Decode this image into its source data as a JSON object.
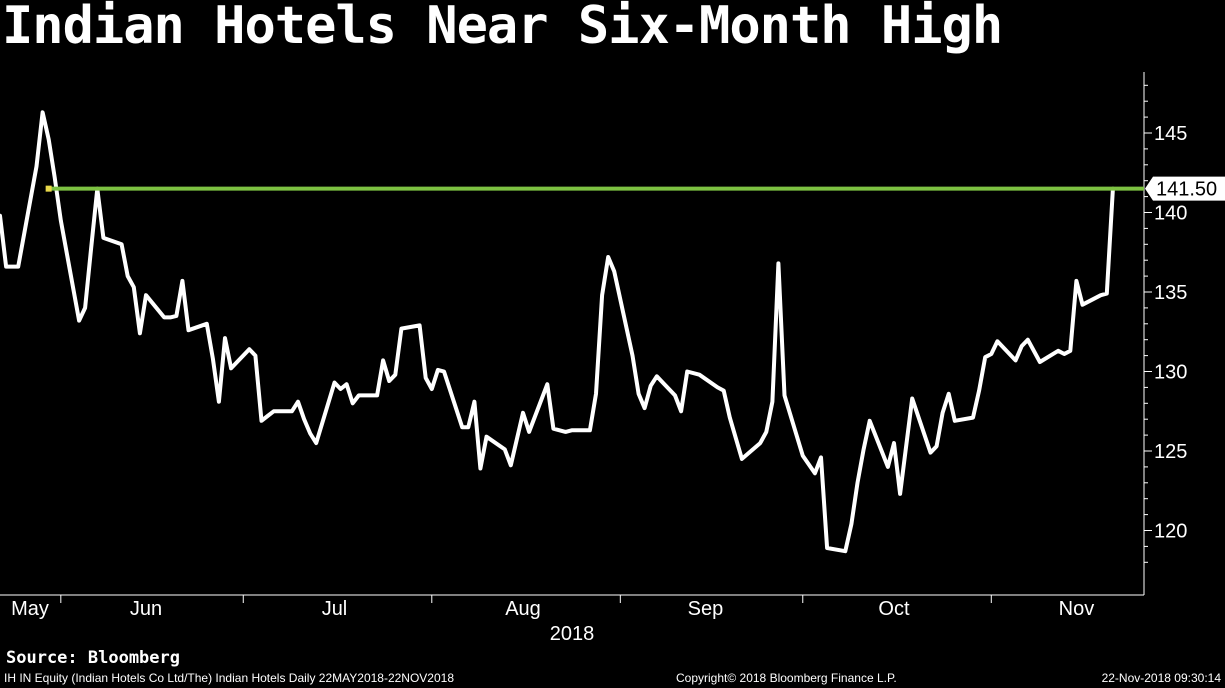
{
  "title": "Indian Hotels Near Six-Month High",
  "source": "Source: Bloomberg",
  "footer": {
    "left": "IH IN Equity (Indian Hotels Co Ltd/The) Indian Hotels  Daily 22MAY2018-22NOV2018",
    "center": "Copyright© 2018 Bloomberg Finance L.P.",
    "right": "22-Nov-2018 09:30:14"
  },
  "colors": {
    "background": "#000000",
    "line": "#ffffff",
    "level_line": "#7dc242",
    "text": "#ffffff"
  },
  "chart_data": {
    "type": "line",
    "title": "Indian Hotels Near Six-Month High",
    "x_label": "2018",
    "x_range": [
      "2018-05-22",
      "2018-11-22"
    ],
    "y_range": [
      117,
      149
    ],
    "y_axis_position": "right",
    "y_ticks": [
      120,
      125,
      130,
      135,
      140,
      145
    ],
    "month_labels": [
      {
        "label": "May",
        "date": "2018-05-15"
      },
      {
        "label": "Jun",
        "date": "2018-06-15"
      },
      {
        "label": "Jul",
        "date": "2018-07-16"
      },
      {
        "label": "Aug",
        "date": "2018-08-16"
      },
      {
        "label": "Sep",
        "date": "2018-09-15"
      },
      {
        "label": "Oct",
        "date": "2018-10-16"
      },
      {
        "label": "Nov",
        "date": "2018-11-15"
      }
    ],
    "month_dividers": [
      "2018-06-01",
      "2018-07-01",
      "2018-08-01",
      "2018-09-01",
      "2018-10-01",
      "2018-11-01"
    ],
    "reference_level": {
      "value": 141.5,
      "label": "141.50",
      "start_date": "2018-05-30"
    },
    "series": [
      {
        "values": [
          [
            "2018-05-22",
            139.8
          ],
          [
            "2018-05-23",
            136.6
          ],
          [
            "2018-05-24",
            136.6
          ],
          [
            "2018-05-25",
            136.6
          ],
          [
            "2018-05-28",
            142.9
          ],
          [
            "2018-05-29",
            146.3
          ],
          [
            "2018-05-30",
            144.6
          ],
          [
            "2018-05-31",
            142.2
          ],
          [
            "2018-06-01",
            139.5
          ],
          [
            "2018-06-04",
            133.2
          ],
          [
            "2018-06-05",
            134.0
          ],
          [
            "2018-06-06",
            137.8
          ],
          [
            "2018-06-07",
            141.5
          ],
          [
            "2018-06-08",
            138.4
          ],
          [
            "2018-06-11",
            138.0
          ],
          [
            "2018-06-12",
            136.0
          ],
          [
            "2018-06-13",
            135.3
          ],
          [
            "2018-06-14",
            132.4
          ],
          [
            "2018-06-15",
            134.8
          ],
          [
            "2018-06-18",
            133.4
          ],
          [
            "2018-06-19",
            133.4
          ],
          [
            "2018-06-20",
            133.5
          ],
          [
            "2018-06-21",
            135.7
          ],
          [
            "2018-06-22",
            132.6
          ],
          [
            "2018-06-25",
            133.0
          ],
          [
            "2018-06-26",
            130.8
          ],
          [
            "2018-06-27",
            128.1
          ],
          [
            "2018-06-28",
            132.1
          ],
          [
            "2018-06-29",
            130.2
          ],
          [
            "2018-07-02",
            131.4
          ],
          [
            "2018-07-03",
            131.0
          ],
          [
            "2018-07-04",
            126.9
          ],
          [
            "2018-07-05",
            127.2
          ],
          [
            "2018-07-06",
            127.5
          ],
          [
            "2018-07-09",
            127.5
          ],
          [
            "2018-07-10",
            128.1
          ],
          [
            "2018-07-11",
            127.0
          ],
          [
            "2018-07-12",
            126.1
          ],
          [
            "2018-07-13",
            125.5
          ],
          [
            "2018-07-16",
            129.3
          ],
          [
            "2018-07-17",
            128.9
          ],
          [
            "2018-07-18",
            129.2
          ],
          [
            "2018-07-19",
            128.0
          ],
          [
            "2018-07-20",
            128.5
          ],
          [
            "2018-07-23",
            128.5
          ],
          [
            "2018-07-24",
            130.7
          ],
          [
            "2018-07-25",
            129.4
          ],
          [
            "2018-07-26",
            129.8
          ],
          [
            "2018-07-27",
            132.7
          ],
          [
            "2018-07-30",
            132.9
          ],
          [
            "2018-07-31",
            129.6
          ],
          [
            "2018-08-01",
            128.9
          ],
          [
            "2018-08-02",
            130.1
          ],
          [
            "2018-08-03",
            130.0
          ],
          [
            "2018-08-06",
            126.5
          ],
          [
            "2018-08-07",
            126.5
          ],
          [
            "2018-08-08",
            128.1
          ],
          [
            "2018-08-09",
            123.9
          ],
          [
            "2018-08-10",
            125.9
          ],
          [
            "2018-08-13",
            125.1
          ],
          [
            "2018-08-14",
            124.1
          ],
          [
            "2018-08-16",
            127.4
          ],
          [
            "2018-08-17",
            126.2
          ],
          [
            "2018-08-20",
            129.2
          ],
          [
            "2018-08-21",
            126.4
          ],
          [
            "2018-08-23",
            126.2
          ],
          [
            "2018-08-24",
            126.3
          ],
          [
            "2018-08-27",
            126.3
          ],
          [
            "2018-08-28",
            128.6
          ],
          [
            "2018-08-29",
            134.8
          ],
          [
            "2018-08-30",
            137.2
          ],
          [
            "2018-08-31",
            136.3
          ],
          [
            "2018-09-03",
            131.0
          ],
          [
            "2018-09-04",
            128.6
          ],
          [
            "2018-09-05",
            127.7
          ],
          [
            "2018-09-06",
            129.1
          ],
          [
            "2018-09-07",
            129.7
          ],
          [
            "2018-09-10",
            128.5
          ],
          [
            "2018-09-11",
            127.5
          ],
          [
            "2018-09-12",
            130.0
          ],
          [
            "2018-09-14",
            129.8
          ],
          [
            "2018-09-17",
            129.0
          ],
          [
            "2018-09-18",
            128.8
          ],
          [
            "2018-09-19",
            127.1
          ],
          [
            "2018-09-21",
            124.5
          ],
          [
            "2018-09-24",
            125.5
          ],
          [
            "2018-09-25",
            126.2
          ],
          [
            "2018-09-26",
            128.1
          ],
          [
            "2018-09-27",
            136.8
          ],
          [
            "2018-09-28",
            128.5
          ],
          [
            "2018-10-01",
            124.7
          ],
          [
            "2018-10-03",
            123.6
          ],
          [
            "2018-10-04",
            124.6
          ],
          [
            "2018-10-05",
            118.9
          ],
          [
            "2018-10-08",
            118.7
          ],
          [
            "2018-10-09",
            120.4
          ],
          [
            "2018-10-10",
            123.0
          ],
          [
            "2018-10-11",
            125.1
          ],
          [
            "2018-10-12",
            126.9
          ],
          [
            "2018-10-15",
            124.0
          ],
          [
            "2018-10-16",
            125.5
          ],
          [
            "2018-10-17",
            122.3
          ],
          [
            "2018-10-19",
            128.3
          ],
          [
            "2018-10-22",
            124.9
          ],
          [
            "2018-10-23",
            125.3
          ],
          [
            "2018-10-24",
            127.4
          ],
          [
            "2018-10-25",
            128.6
          ],
          [
            "2018-10-26",
            126.9
          ],
          [
            "2018-10-29",
            127.1
          ],
          [
            "2018-10-30",
            128.8
          ],
          [
            "2018-10-31",
            130.9
          ],
          [
            "2018-11-01",
            131.1
          ],
          [
            "2018-11-02",
            131.9
          ],
          [
            "2018-11-05",
            130.7
          ],
          [
            "2018-11-06",
            131.6
          ],
          [
            "2018-11-07",
            132.0
          ],
          [
            "2018-11-09",
            130.6
          ],
          [
            "2018-11-12",
            131.3
          ],
          [
            "2018-11-13",
            131.1
          ],
          [
            "2018-11-14",
            131.3
          ],
          [
            "2018-11-15",
            135.7
          ],
          [
            "2018-11-16",
            134.2
          ],
          [
            "2018-11-19",
            134.8
          ],
          [
            "2018-11-20",
            134.9
          ],
          [
            "2018-11-21",
            141.5
          ]
        ]
      }
    ]
  }
}
